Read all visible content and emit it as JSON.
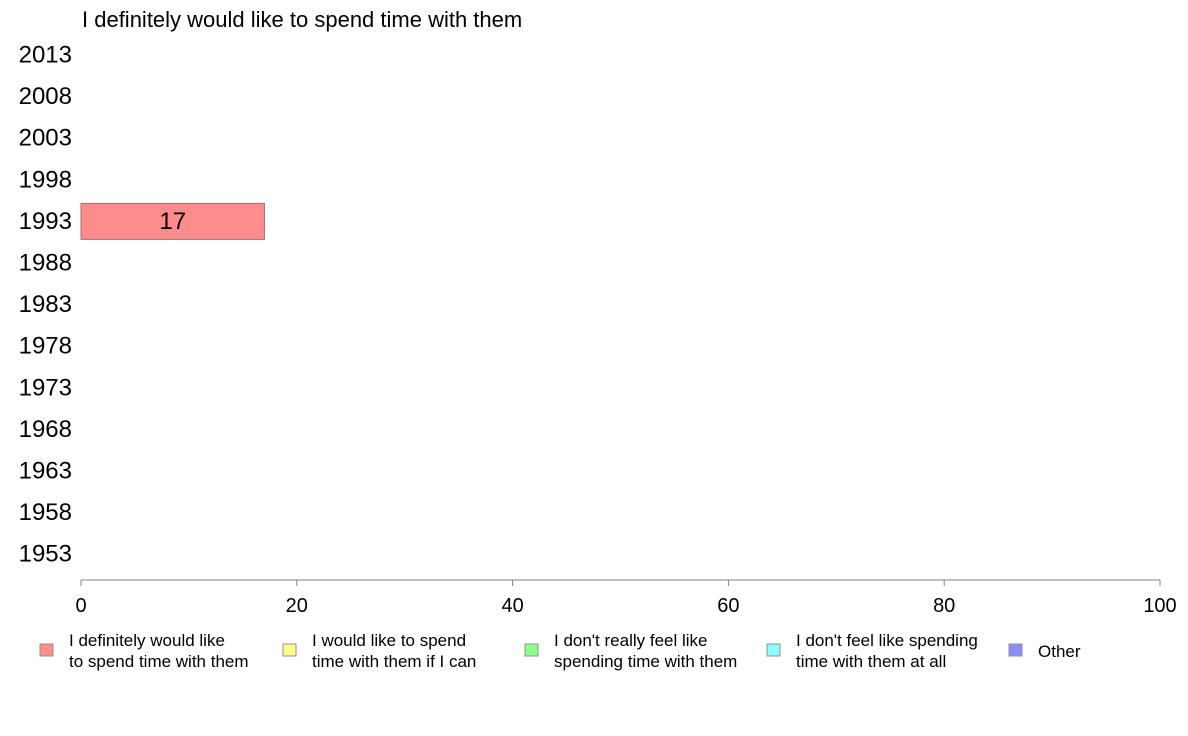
{
  "chart_data": {
    "type": "bar",
    "orientation": "horizontal",
    "stacked": true,
    "title": "I definitely would like to spend time with them",
    "categories": [
      "2013",
      "2008",
      "2003",
      "1998",
      "1993",
      "1988",
      "1983",
      "1978",
      "1973",
      "1968",
      "1963",
      "1958",
      "1953"
    ],
    "series": [
      {
        "name": "I definitely would like to spend time with them",
        "color": "#ff8c8c",
        "values": [
          null,
          null,
          null,
          null,
          17,
          null,
          null,
          null,
          null,
          null,
          null,
          null,
          null
        ]
      },
      {
        "name": "I would like to spend time with them if I can",
        "color": "#ffff8c",
        "values": [
          null,
          null,
          null,
          null,
          null,
          null,
          null,
          null,
          null,
          null,
          null,
          null,
          null
        ]
      },
      {
        "name": "I don't really feel like spending time with them",
        "color": "#8cff8c",
        "values": [
          null,
          null,
          null,
          null,
          null,
          null,
          null,
          null,
          null,
          null,
          null,
          null,
          null
        ]
      },
      {
        "name": "I don't feel like spending time with them at all",
        "color": "#8cffff",
        "values": [
          null,
          null,
          null,
          null,
          null,
          null,
          null,
          null,
          null,
          null,
          null,
          null,
          null
        ]
      },
      {
        "name": "Other",
        "color": "#8c8cff",
        "values": [
          null,
          null,
          null,
          null,
          null,
          null,
          null,
          null,
          null,
          null,
          null,
          null,
          null
        ]
      }
    ],
    "legend": [
      {
        "lines": [
          "I definitely would like",
          "to spend time with them"
        ],
        "color": "#ff8c8c"
      },
      {
        "lines": [
          "I would like to spend",
          "time with them if I can"
        ],
        "color": "#ffff8c"
      },
      {
        "lines": [
          "I don't really feel like",
          "spending time with them"
        ],
        "color": "#8cff8c"
      },
      {
        "lines": [
          "I don't feel like spending",
          "time with them at all"
        ],
        "color": "#8cffff"
      },
      {
        "lines": [
          "Other"
        ],
        "color": "#8c8cff"
      }
    ],
    "xlim": [
      0,
      100
    ],
    "xticks": [
      0,
      20,
      40,
      60,
      80,
      100
    ],
    "legend_position": "bottom",
    "grid": false
  }
}
